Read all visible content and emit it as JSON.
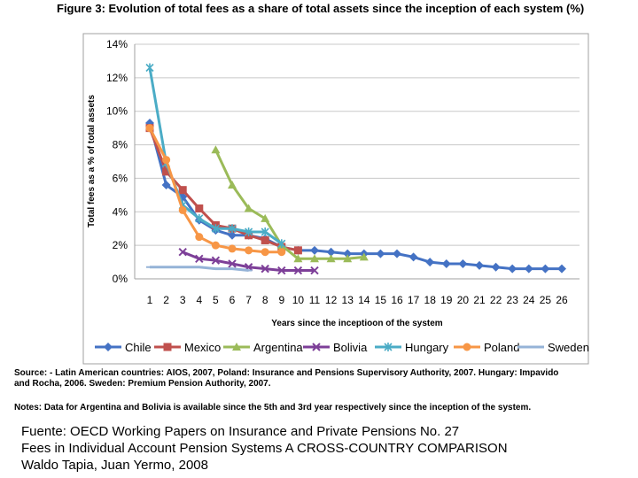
{
  "title": "Figure 3: Evolution of total fees as a share of total assets since the inception of each system (%)",
  "source_line1": "Source: - Latin American countries: AIOS, 2007, Poland: Insurance and Pensions Supervisory Authority, 2007. Hungary: Impavido",
  "source_line2": "and Rocha, 2006. Sweden:  Premium Pension Authority, 2007.",
  "notes": "Notes: Data for Argentina and Bolivia is available since the 5th and 3rd year respectively since the inception of the system.",
  "fuente": [
    "Fuente: OECD Working Papers on Insurance and Private Pensions No. 27",
    "Fees in Individual Account Pension Systems A CROSS-COUNTRY COMPARISON",
    "Waldo Tapia, Juan Yermo, 2008"
  ],
  "chart_data": {
    "type": "line",
    "xlabel": "Years since the inceptioon of the system",
    "ylabel": "Total fees as a % of total assets",
    "x": [
      1,
      2,
      3,
      4,
      5,
      6,
      7,
      8,
      9,
      10,
      11,
      12,
      13,
      14,
      15,
      16,
      17,
      18,
      19,
      20,
      21,
      22,
      23,
      24,
      25,
      26
    ],
    "yticks": [
      "0%",
      "2%",
      "4%",
      "6%",
      "8%",
      "10%",
      "12%",
      "14%"
    ],
    "ylim": [
      0,
      14
    ],
    "grid": true,
    "legend_position": "bottom",
    "series": [
      {
        "name": "Chile",
        "color": "#4472C4",
        "marker": "diamond",
        "points": [
          [
            1,
            9.3
          ],
          [
            2,
            5.6
          ],
          [
            3,
            4.9
          ],
          [
            4,
            3.5
          ],
          [
            5,
            2.9
          ],
          [
            6,
            2.6
          ],
          [
            7,
            2.6
          ],
          [
            8,
            2.4
          ],
          [
            9,
            1.9
          ],
          [
            10,
            1.7
          ],
          [
            11,
            1.7
          ],
          [
            12,
            1.6
          ],
          [
            13,
            1.5
          ],
          [
            14,
            1.5
          ],
          [
            15,
            1.5
          ],
          [
            16,
            1.5
          ],
          [
            17,
            1.3
          ],
          [
            18,
            1.0
          ],
          [
            19,
            0.9
          ],
          [
            20,
            0.9
          ],
          [
            21,
            0.8
          ],
          [
            22,
            0.7
          ],
          [
            23,
            0.6
          ],
          [
            24,
            0.6
          ],
          [
            25,
            0.6
          ],
          [
            26,
            0.6
          ]
        ]
      },
      {
        "name": "Mexico",
        "color": "#C0504D",
        "marker": "square",
        "points": [
          [
            1,
            9.0
          ],
          [
            2,
            6.4
          ],
          [
            3,
            5.3
          ],
          [
            4,
            4.2
          ],
          [
            5,
            3.2
          ],
          [
            6,
            3.0
          ],
          [
            7,
            2.6
          ],
          [
            8,
            2.3
          ],
          [
            9,
            1.9
          ],
          [
            10,
            1.7
          ]
        ]
      },
      {
        "name": "Argentina",
        "color": "#9BBB59",
        "marker": "triangle",
        "points": [
          [
            5,
            7.7
          ],
          [
            6,
            5.6
          ],
          [
            7,
            4.2
          ],
          [
            8,
            3.6
          ],
          [
            9,
            2.0
          ],
          [
            10,
            1.2
          ],
          [
            11,
            1.2
          ],
          [
            12,
            1.2
          ],
          [
            13,
            1.2
          ],
          [
            14,
            1.3
          ]
        ]
      },
      {
        "name": "Bolivia",
        "color": "#7D3F98",
        "marker": "x",
        "points": [
          [
            3,
            1.6
          ],
          [
            4,
            1.2
          ],
          [
            5,
            1.1
          ],
          [
            6,
            0.9
          ],
          [
            7,
            0.7
          ],
          [
            8,
            0.6
          ],
          [
            9,
            0.5
          ],
          [
            10,
            0.5
          ],
          [
            11,
            0.5
          ]
        ]
      },
      {
        "name": "Hungary",
        "color": "#4BACC6",
        "marker": "star",
        "points": [
          [
            1,
            12.6
          ],
          [
            2,
            6.9
          ],
          [
            3,
            4.4
          ],
          [
            4,
            3.6
          ],
          [
            5,
            3.0
          ],
          [
            6,
            3.0
          ],
          [
            7,
            2.8
          ],
          [
            8,
            2.8
          ],
          [
            9,
            2.1
          ]
        ]
      },
      {
        "name": "Poland",
        "color": "#F79646",
        "marker": "circle",
        "points": [
          [
            1,
            9.0
          ],
          [
            2,
            7.1
          ],
          [
            3,
            4.1
          ],
          [
            4,
            2.5
          ],
          [
            5,
            2.0
          ],
          [
            6,
            1.8
          ],
          [
            7,
            1.7
          ],
          [
            8,
            1.6
          ],
          [
            9,
            1.6
          ]
        ]
      },
      {
        "name": "Sweden",
        "color": "#95B3D7",
        "marker": "dash",
        "points": [
          [
            1,
            0.7
          ],
          [
            2,
            0.7
          ],
          [
            3,
            0.7
          ],
          [
            4,
            0.7
          ],
          [
            5,
            0.6
          ],
          [
            6,
            0.6
          ],
          [
            7,
            0.5
          ]
        ]
      }
    ]
  }
}
